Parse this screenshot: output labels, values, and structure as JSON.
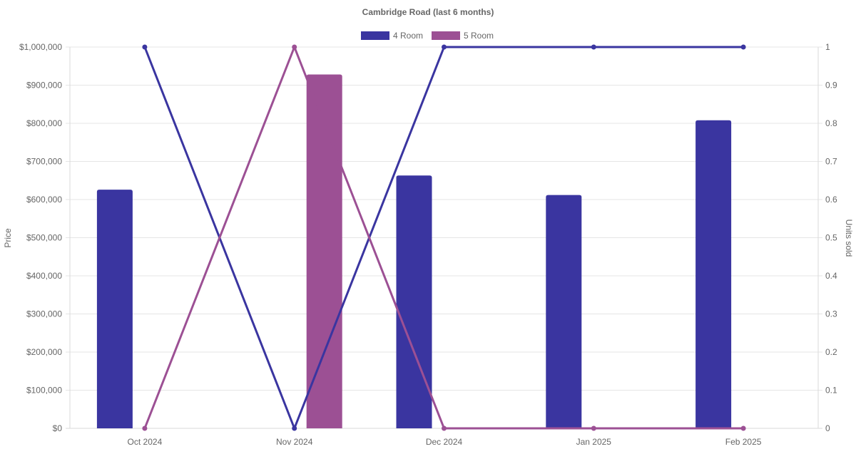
{
  "chart_data": {
    "type": "bar",
    "title": "Cambridge Road (last 6 months)",
    "categories": [
      "Oct 2024",
      "Nov 2024",
      "Dec 2024",
      "Jan 2025",
      "Feb 2025"
    ],
    "y_left": {
      "label": "Price",
      "min": 0,
      "max": 1000000,
      "step": 100000,
      "ticks": [
        "$0",
        "$100,000",
        "$200,000",
        "$300,000",
        "$400,000",
        "$500,000",
        "$600,000",
        "$700,000",
        "$800,000",
        "$900,000",
        "$1,000,000"
      ]
    },
    "y_right": {
      "label": "Units sold",
      "min": 0,
      "max": 1,
      "step": 0.1,
      "ticks": [
        "0",
        "0.1",
        "0.2",
        "0.3",
        "0.4",
        "0.5",
        "0.6",
        "0.7",
        "0.8",
        "0.9",
        "1"
      ]
    },
    "series": [
      {
        "name": "4 Room",
        "color": "#3a35a0",
        "bar_values": [
          626000,
          null,
          663000,
          612000,
          808000
        ],
        "line_values": [
          1,
          0,
          1,
          1,
          1
        ]
      },
      {
        "name": "5 Room",
        "color": "#9c5094",
        "bar_values": [
          null,
          928000,
          null,
          null,
          null
        ],
        "line_values": [
          0,
          1,
          0,
          0,
          0
        ]
      }
    ],
    "legend_position": "top",
    "grid": true
  }
}
